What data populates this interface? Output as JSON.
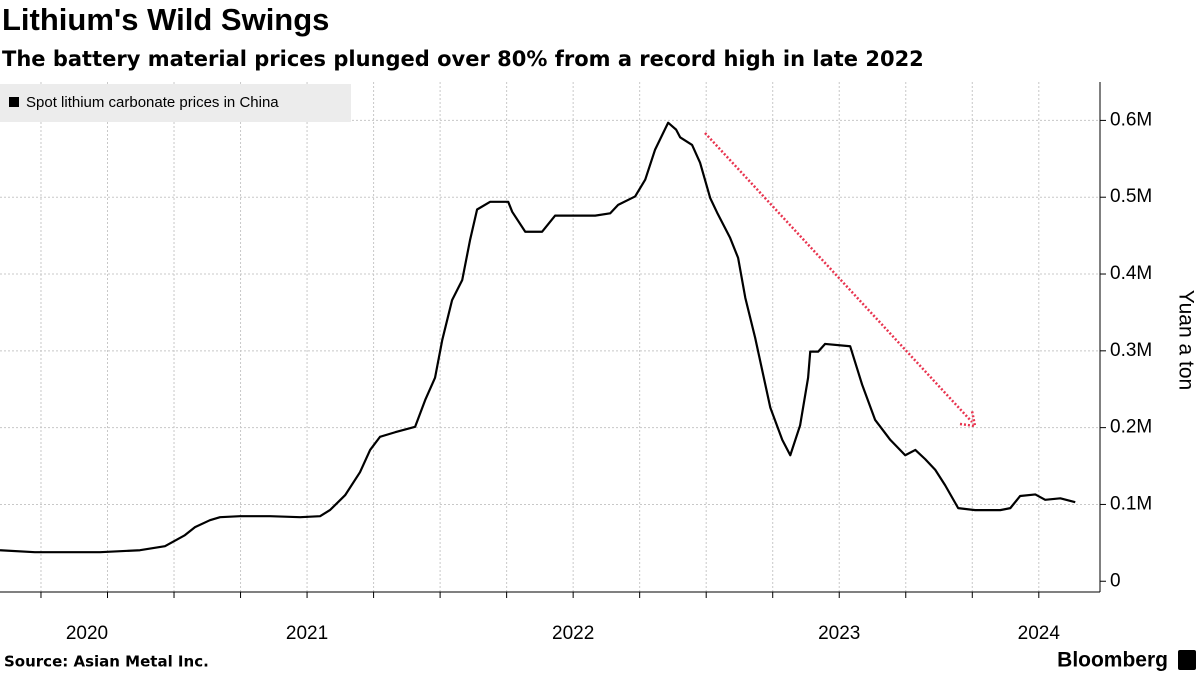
{
  "chart_data": {
    "type": "line",
    "title": "Lithium's Wild Swings",
    "subtitle": "The battery material prices plunged over 80% from a record high in late 2022",
    "y_axis_label": "Yuan a ton",
    "source": "Source: Asian Metal Inc.",
    "brand": "Bloomberg",
    "grid": true,
    "legend_position": "upper left",
    "xlim": [
      2020.346,
      2024.48
    ],
    "ylim": [
      -14000,
      650000
    ],
    "yticks": [
      0,
      {
        "value": 100000,
        "label": "0.1M"
      },
      {
        "value": 200000,
        "label": "0.2M"
      },
      {
        "value": 300000,
        "label": "0.3M"
      },
      {
        "value": 400000,
        "label": "0.4M"
      },
      {
        "value": 500000,
        "label": "0.5M"
      },
      {
        "value": 600000,
        "label": "0.6M"
      }
    ],
    "xticks": [
      {
        "value": 2020.673,
        "label": "2020"
      },
      {
        "value": 2021.5,
        "label": "2021"
      },
      {
        "value": 2022.5,
        "label": "2022"
      },
      {
        "value": 2023.5,
        "label": "2023"
      },
      {
        "value": 2024.25,
        "label": "2024"
      }
    ],
    "xgrid_ticks": [
      2020.5,
      2020.75,
      2021,
      2021.25,
      2021.5,
      2021.75,
      2022,
      2022.25,
      2022.5,
      2022.75,
      2023,
      2023.25,
      2023.5,
      2023.75,
      2024,
      2024.25
    ],
    "series": [
      {
        "name": "Spot lithium carbonate prices in China",
        "color": "#000000",
        "x": [
          2020.346,
          2020.477,
          2020.722,
          2020.872,
          2020.966,
          2021.041,
          2021.079,
          2021.135,
          2021.173,
          2021.248,
          2021.361,
          2021.474,
          2021.549,
          2021.586,
          2021.643,
          2021.699,
          2021.737,
          2021.774,
          2021.831,
          2021.906,
          2021.944,
          2021.981,
          2022.008,
          2022.045,
          2022.083,
          2022.113,
          2022.139,
          2022.188,
          2022.256,
          2022.271,
          2022.32,
          2022.383,
          2022.432,
          2022.489,
          2022.583,
          2022.639,
          2022.669,
          2022.733,
          2022.771,
          2022.808,
          2022.857,
          2022.887,
          2022.902,
          2022.947,
          2022.977,
          2023.015,
          2023.041,
          2023.09,
          2023.12,
          2023.147,
          2023.184,
          2023.241,
          2023.286,
          2023.316,
          2023.353,
          2023.383,
          2023.391,
          2023.421,
          2023.447,
          2023.541,
          2023.586,
          2023.635,
          2023.692,
          2023.748,
          2023.786,
          2023.823,
          2023.861,
          2023.898,
          2023.947,
          2024.011,
          2024.105,
          2024.143,
          2024.18,
          2024.237,
          2024.274,
          2024.331,
          2024.387
        ],
        "values": [
          40400,
          37800,
          37800,
          40400,
          45600,
          60000,
          70400,
          79500,
          83400,
          84700,
          84700,
          83400,
          84700,
          92600,
          112000,
          142000,
          171000,
          188000,
          194000,
          201000,
          236000,
          265000,
          314000,
          366000,
          392000,
          445000,
          484000,
          494000,
          494000,
          481000,
          455000,
          455000,
          476000,
          476000,
          476000,
          479000,
          490000,
          501000,
          523000,
          562000,
          597000,
          588000,
          578000,
          568000,
          545000,
          499000,
          480000,
          447000,
          421000,
          369000,
          317000,
          226000,
          184000,
          164000,
          203000,
          265000,
          299000,
          299000,
          309000,
          306000,
          256000,
          210000,
          184000,
          164000,
          171000,
          159000,
          145000,
          125000,
          95200,
          92600,
          92600,
          95200,
          111000,
          113000,
          106000,
          108000,
          103000
        ]
      }
    ]
  }
}
